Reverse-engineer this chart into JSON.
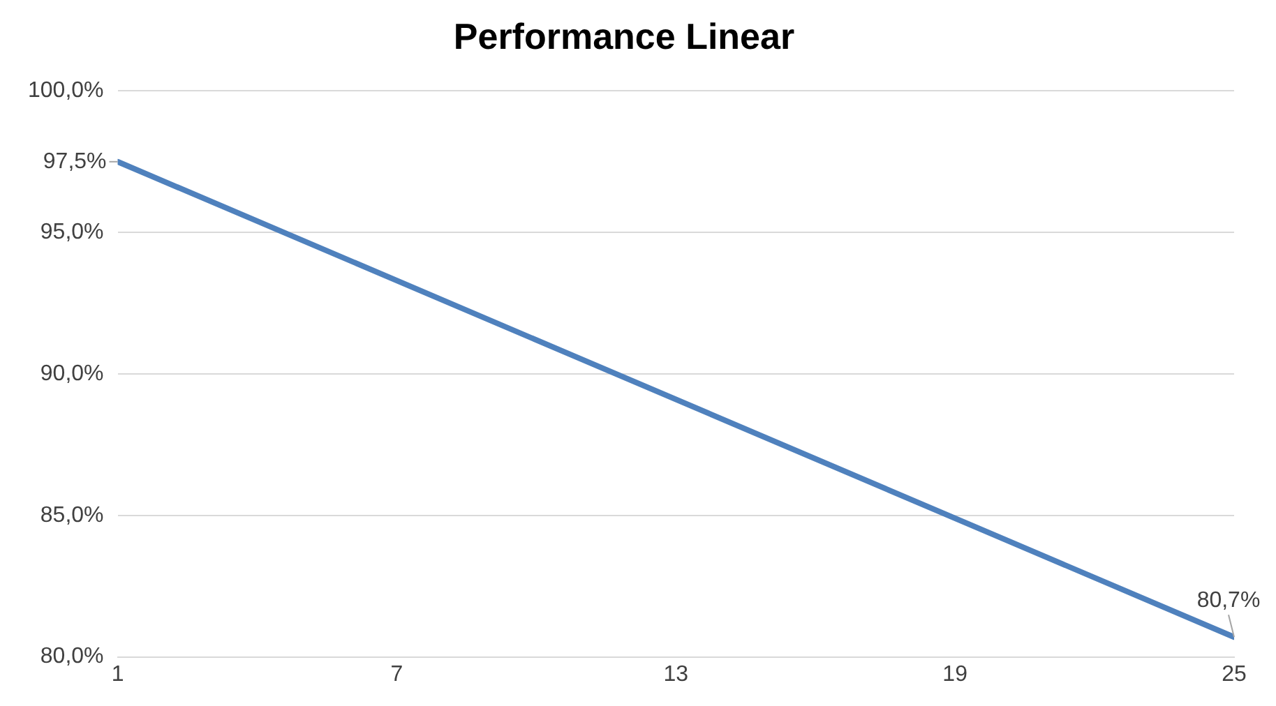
{
  "chart_data": {
    "type": "line",
    "title": "Performance Linear",
    "x": [
      1,
      25
    ],
    "series": [
      {
        "color": "#4f81bd",
        "values": [
          97.5,
          80.7
        ],
        "value_labels": [
          "97,5%",
          "80,7%"
        ]
      }
    ],
    "xlim": [
      1,
      25
    ],
    "xticks": [
      1,
      7,
      13,
      19,
      25
    ],
    "ylim": [
      80,
      100
    ],
    "yticks": [
      {
        "value": 80,
        "label": "80,0%"
      },
      {
        "value": 85,
        "label": "85,0%"
      },
      {
        "value": 90,
        "label": "90,0%"
      },
      {
        "value": 95,
        "label": "95,0%"
      },
      {
        "value": 100,
        "label": "100,0%"
      }
    ],
    "grid": "y",
    "legend": false,
    "marker": "none",
    "line_style": "solid"
  }
}
